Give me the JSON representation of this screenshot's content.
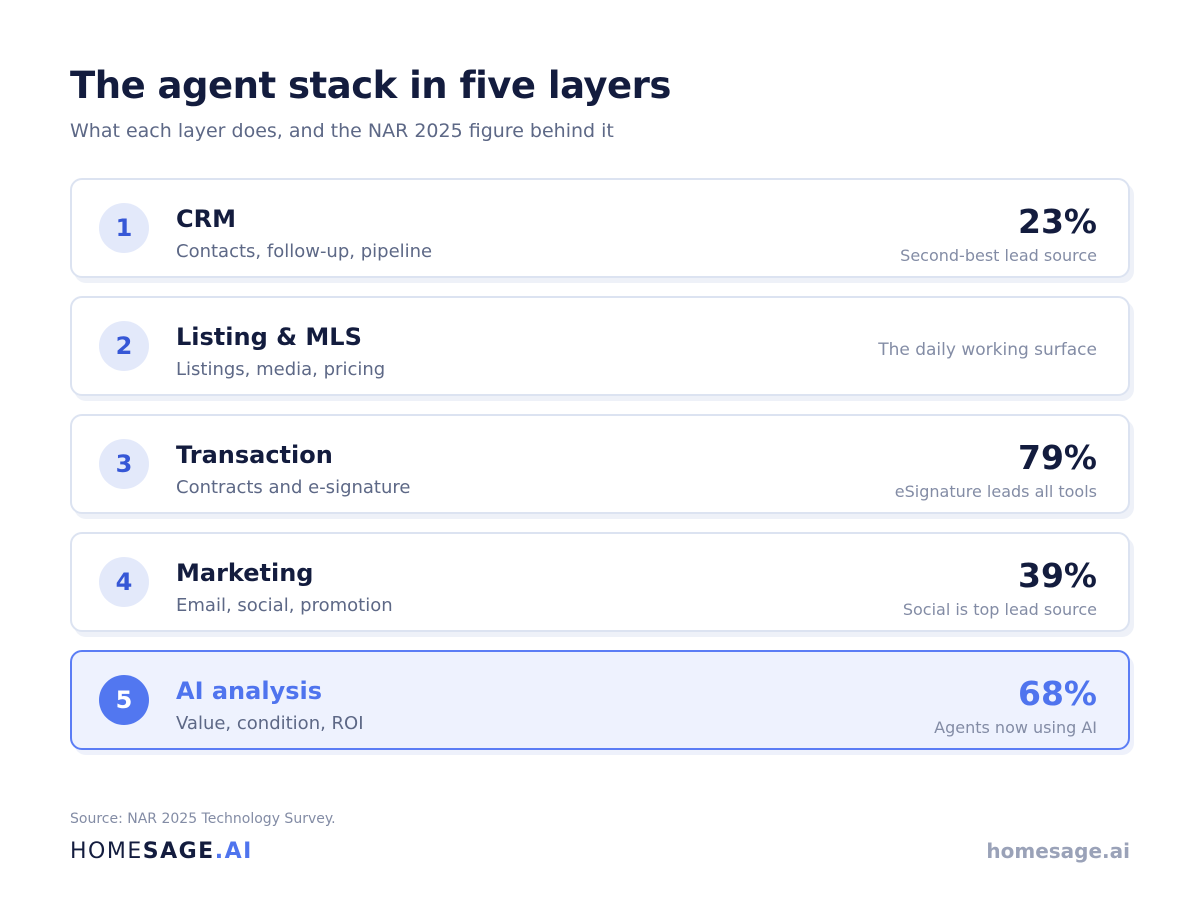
{
  "header": {
    "title": "The agent stack in five layers",
    "subtitle": "What each layer does, and the NAR 2025 figure behind it"
  },
  "layers": [
    {
      "number": "1",
      "name": "CRM",
      "description": "Contacts, follow-up, pipeline",
      "stat": "23%",
      "note": "Second-best lead source"
    },
    {
      "number": "2",
      "name": "Listing & MLS",
      "description": "Listings, media, pricing",
      "note": "The daily working surface"
    },
    {
      "number": "3",
      "name": "Transaction",
      "description": "Contracts and e-signature",
      "stat": "79%",
      "note": "eSignature leads all tools"
    },
    {
      "number": "4",
      "name": "Marketing",
      "description": "Email, social, promotion",
      "stat": "39%",
      "note": "Social is top lead source"
    },
    {
      "number": "5",
      "name": "AI analysis",
      "description": "Value, condition, ROI",
      "stat": "68%",
      "note": "Agents now using AI"
    }
  ],
  "footer": {
    "source": "Source: NAR 2025 Technology Survey.",
    "logo_part1": "HOME",
    "logo_part2": "SAGE",
    "logo_part3": ".AI",
    "website": "homesage.ai"
  },
  "colors": {
    "heading": "#131c3e",
    "accent": "#4f74ee",
    "muted_text": "#5d6886",
    "highlight_background": "#eef2fe",
    "card_border": "#dce3f1"
  }
}
